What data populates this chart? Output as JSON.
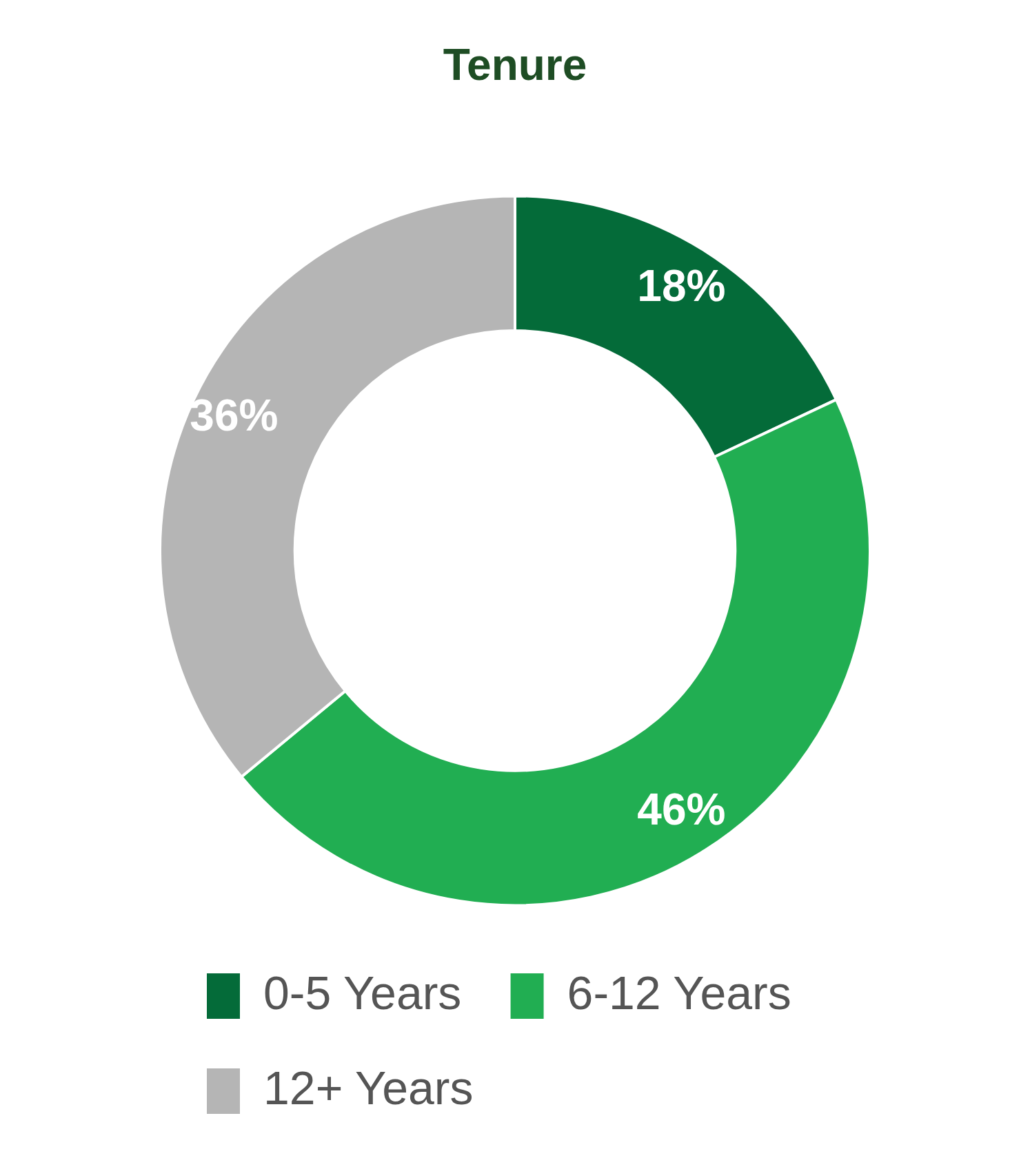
{
  "chart_data": {
    "type": "donut",
    "title": "Tenure",
    "categories": [
      "0-5 Years",
      "6-12 Years",
      "12+ Years"
    ],
    "values": [
      18,
      46,
      36
    ],
    "colors": [
      "#046b39",
      "#21ae52",
      "#b5b5b5"
    ],
    "value_labels": [
      "18%",
      "46%",
      "36%"
    ],
    "legend": "bottom"
  }
}
